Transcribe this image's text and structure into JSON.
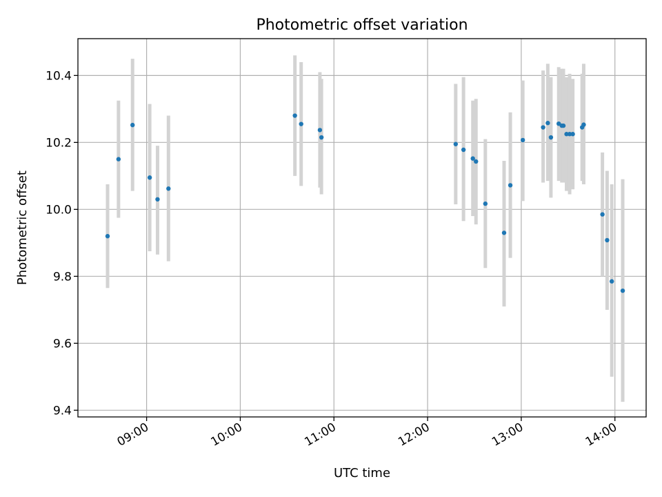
{
  "chart_data": {
    "type": "scatter",
    "title": "Photometric offset variation",
    "xlabel": "UTC time",
    "ylabel": "Photometric offset",
    "xlim": [
      "08:16",
      "14:20"
    ],
    "ylim": [
      9.38,
      10.51
    ],
    "xticks": [
      "09:00",
      "10:00",
      "11:00",
      "12:00",
      "13:00",
      "14:00"
    ],
    "yticks": [
      "9.4",
      "9.6",
      "9.8",
      "10.0",
      "10.2",
      "10.4"
    ],
    "grid": true,
    "colors": {
      "point": "#1f77b4",
      "errorbar": "#d3d3d3"
    },
    "series": [
      {
        "points": [
          {
            "x": "08:35",
            "y": 9.92,
            "ylow": 9.765,
            "yhigh": 10.075
          },
          {
            "x": "08:42",
            "y": 10.15,
            "ylow": 9.975,
            "yhigh": 10.325
          },
          {
            "x": "08:51",
            "y": 10.252,
            "ylow": 10.055,
            "yhigh": 10.45
          },
          {
            "x": "09:02",
            "y": 10.095,
            "ylow": 9.875,
            "yhigh": 10.315
          },
          {
            "x": "09:07",
            "y": 10.03,
            "ylow": 9.865,
            "yhigh": 10.19
          },
          {
            "x": "09:14",
            "y": 10.062,
            "ylow": 9.845,
            "yhigh": 10.28
          },
          {
            "x": "10:35",
            "y": 10.28,
            "ylow": 10.1,
            "yhigh": 10.46
          },
          {
            "x": "10:39",
            "y": 10.255,
            "ylow": 10.07,
            "yhigh": 10.44
          },
          {
            "x": "10:51",
            "y": 10.237,
            "ylow": 10.065,
            "yhigh": 10.41
          },
          {
            "x": "10:52",
            "y": 10.215,
            "ylow": 10.045,
            "yhigh": 10.39
          },
          {
            "x": "12:18",
            "y": 10.195,
            "ylow": 10.015,
            "yhigh": 10.375
          },
          {
            "x": "12:23",
            "y": 10.178,
            "ylow": 9.965,
            "yhigh": 10.395
          },
          {
            "x": "12:29",
            "y": 10.152,
            "ylow": 9.98,
            "yhigh": 10.325
          },
          {
            "x": "12:31",
            "y": 10.143,
            "ylow": 9.955,
            "yhigh": 10.33
          },
          {
            "x": "12:37",
            "y": 10.017,
            "ylow": 9.825,
            "yhigh": 10.21
          },
          {
            "x": "12:49",
            "y": 9.93,
            "ylow": 9.71,
            "yhigh": 10.145
          },
          {
            "x": "12:53",
            "y": 10.072,
            "ylow": 9.855,
            "yhigh": 10.29
          },
          {
            "x": "13:01",
            "y": 10.207,
            "ylow": 10.025,
            "yhigh": 10.385
          },
          {
            "x": "13:14",
            "y": 10.245,
            "ylow": 10.08,
            "yhigh": 10.415
          },
          {
            "x": "13:17",
            "y": 10.258,
            "ylow": 10.085,
            "yhigh": 10.435
          },
          {
            "x": "13:19",
            "y": 10.215,
            "ylow": 10.035,
            "yhigh": 10.395
          },
          {
            "x": "13:24",
            "y": 10.256,
            "ylow": 10.085,
            "yhigh": 10.425
          },
          {
            "x": "13:26",
            "y": 10.25,
            "ylow": 10.08,
            "yhigh": 10.42
          },
          {
            "x": "13:27",
            "y": 10.25,
            "ylow": 10.08,
            "yhigh": 10.42
          },
          {
            "x": "13:29",
            "y": 10.225,
            "ylow": 10.055,
            "yhigh": 10.395
          },
          {
            "x": "13:31",
            "y": 10.225,
            "ylow": 10.045,
            "yhigh": 10.405
          },
          {
            "x": "13:33",
            "y": 10.225,
            "ylow": 10.06,
            "yhigh": 10.39
          },
          {
            "x": "13:39",
            "y": 10.245,
            "ylow": 10.085,
            "yhigh": 10.405
          },
          {
            "x": "13:40",
            "y": 10.253,
            "ylow": 10.075,
            "yhigh": 10.435
          },
          {
            "x": "13:52",
            "y": 9.985,
            "ylow": 9.8,
            "yhigh": 10.17
          },
          {
            "x": "13:55",
            "y": 9.908,
            "ylow": 9.7,
            "yhigh": 10.115
          },
          {
            "x": "13:58",
            "y": 9.785,
            "ylow": 9.5,
            "yhigh": 10.075
          },
          {
            "x": "14:05",
            "y": 9.757,
            "ylow": 9.425,
            "yhigh": 10.09
          }
        ]
      }
    ]
  }
}
